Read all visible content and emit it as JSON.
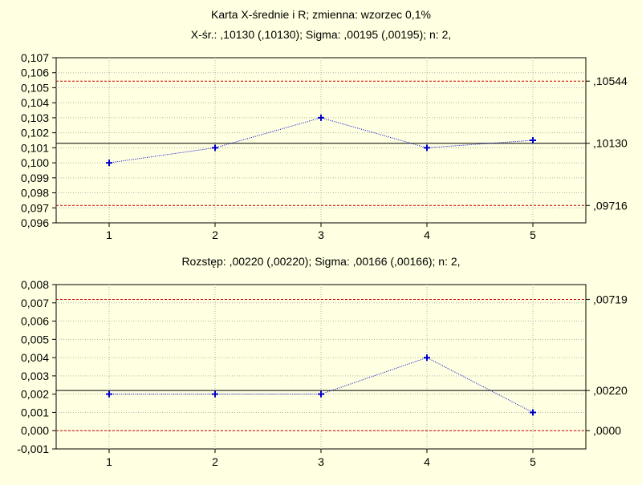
{
  "title_line1": "Karta X-średnie i R; zmienna:  wzorzec 0,1%",
  "colors": {
    "background": "#ffffe1",
    "plot_background": "#ffffe1",
    "series": "#0000cc",
    "center_line": "#000000",
    "control_limit": "#cc0000",
    "grid": "#b0b0b0"
  },
  "chart_data": [
    {
      "type": "line",
      "title": "X-śr.: ,10130 (,10130); Sigma: ,00195 (,00195); n: 2,",
      "xlabel": "",
      "ylabel": "",
      "x": [
        1,
        2,
        3,
        4,
        5
      ],
      "x_tick_labels": [
        "1",
        "2",
        "3",
        "4",
        "5"
      ],
      "values": [
        0.1,
        0.101,
        0.103,
        0.101,
        0.1015
      ],
      "ylim": [
        0.096,
        0.107
      ],
      "y_ticks": [
        0.096,
        0.097,
        0.098,
        0.099,
        0.1,
        0.101,
        0.102,
        0.103,
        0.104,
        0.105,
        0.106,
        0.107
      ],
      "y_tick_labels": [
        "0,096",
        "0,097",
        "0,098",
        "0,099",
        "0,100",
        "0,101",
        "0,102",
        "0,103",
        "0,104",
        "0,105",
        "0,106",
        "0,107"
      ],
      "ucl": 0.10544,
      "center": 0.1013,
      "lcl": 0.09716,
      "ucl_label": ",10544",
      "center_label": ",10130",
      "lcl_label": ",09716",
      "grid": true,
      "marker": "plus"
    },
    {
      "type": "line",
      "title": "Rozstęp: ,00220 (,00220); Sigma: ,00166 (,00166); n: 2,",
      "xlabel": "",
      "ylabel": "",
      "x": [
        1,
        2,
        3,
        4,
        5
      ],
      "x_tick_labels": [
        "1",
        "2",
        "3",
        "4",
        "5"
      ],
      "values": [
        0.002,
        0.002,
        0.002,
        0.004,
        0.001
      ],
      "ylim": [
        -0.001,
        0.008
      ],
      "y_ticks": [
        -0.001,
        0.0,
        0.001,
        0.002,
        0.003,
        0.004,
        0.005,
        0.006,
        0.007,
        0.008
      ],
      "y_tick_labels": [
        "-0,001",
        "0,000",
        "0,001",
        "0,002",
        "0,003",
        "0,004",
        "0,005",
        "0,006",
        "0,007",
        "0,008"
      ],
      "ucl": 0.00719,
      "center": 0.0022,
      "lcl": 0.0,
      "ucl_label": ",00719",
      "center_label": ",00220",
      "lcl_label": ",0000",
      "grid": true,
      "marker": "plus"
    }
  ]
}
